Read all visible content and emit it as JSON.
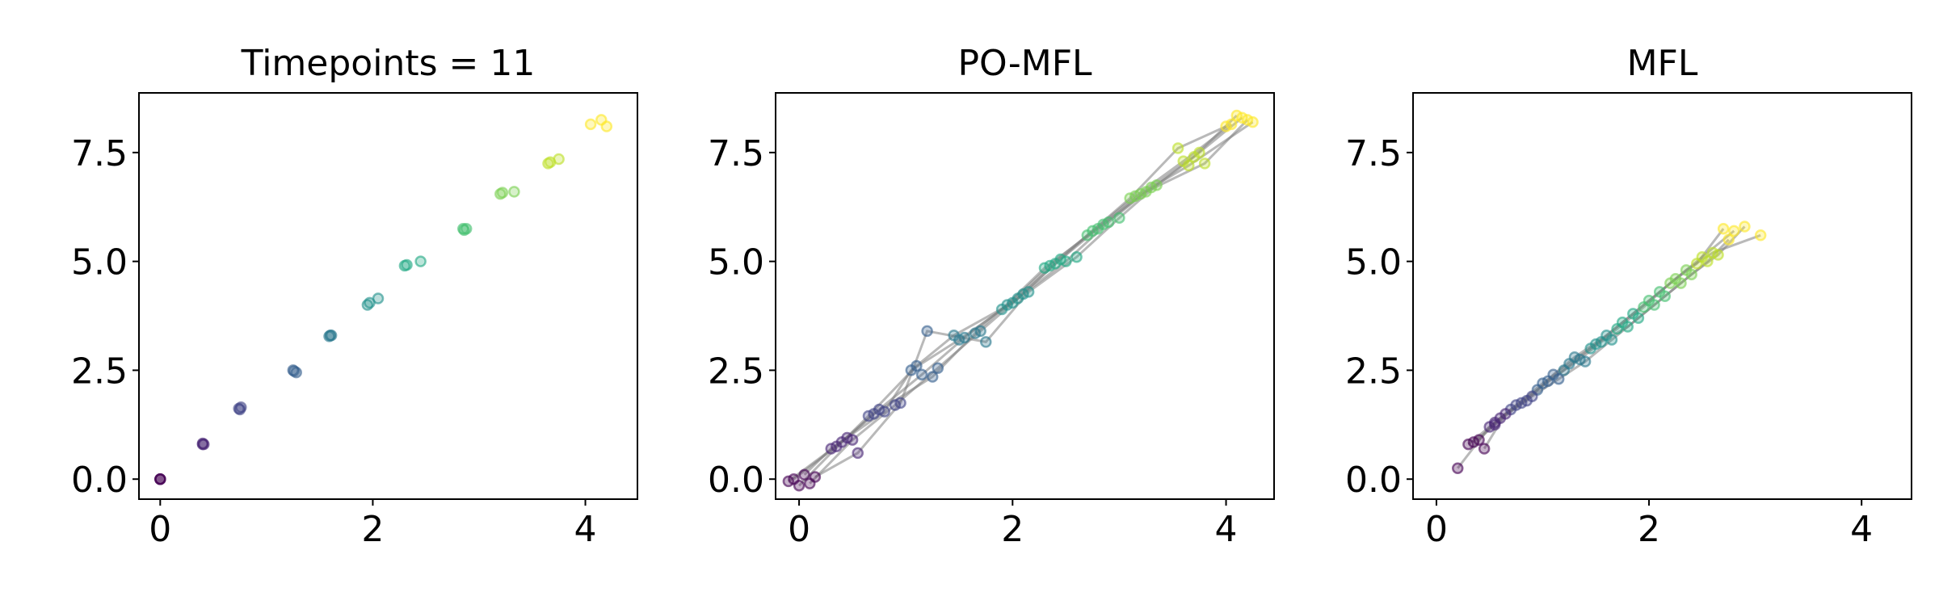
{
  "chart_data": [
    {
      "type": "scatter",
      "title": "Timepoints = 11",
      "xlim": [
        -0.2,
        4.49
      ],
      "ylim": [
        -0.46,
        8.87
      ],
      "xticks": [
        0,
        2,
        4
      ],
      "yticks": [
        {
          "value": 0,
          "label": "0.0"
        },
        2.5,
        {
          "value": 5,
          "label": "5.0"
        },
        7.5
      ],
      "point_colors": [
        "#440154",
        "#482475",
        "#414487",
        "#355f8d",
        "#2a788e",
        "#21918c",
        "#22a884",
        "#44bf70",
        "#7ad151",
        "#bddf26",
        "#fde725"
      ],
      "show_lines": false,
      "line_color": "#808080",
      "trajectories": [
        {
          "x": [
            0,
            0.4,
            0.75,
            1.25,
            1.6,
            1.95,
            2.3,
            2.85,
            3.2,
            3.65,
            4.05
          ],
          "y": [
            0,
            0.8,
            1.6,
            2.5,
            3.3,
            4.0,
            4.9,
            5.75,
            6.55,
            7.25,
            8.15
          ]
        },
        {
          "x": [
            0,
            0.41,
            0.76,
            1.28,
            1.61,
            2.05,
            2.45,
            2.88,
            3.33,
            3.75,
            4.15
          ],
          "y": [
            0,
            0.8,
            1.65,
            2.45,
            3.3,
            4.15,
            5.0,
            5.75,
            6.6,
            7.35,
            8.25
          ]
        },
        {
          "x": [
            0,
            0.4,
            0.74,
            1.26,
            1.59,
            1.97,
            2.32,
            2.86,
            3.22,
            3.67,
            4.2
          ],
          "y": [
            0,
            0.82,
            1.62,
            2.48,
            3.28,
            4.05,
            4.92,
            5.72,
            6.58,
            7.28,
            8.1
          ]
        }
      ]
    },
    {
      "type": "scatter",
      "title": "PO-MFL",
      "xlim": [
        -0.22,
        4.45
      ],
      "ylim": [
        -0.46,
        8.87
      ],
      "xticks": [
        0,
        2,
        4
      ],
      "yticks": [
        {
          "value": 0,
          "label": "0.0"
        },
        2.5,
        {
          "value": 5,
          "label": "5.0"
        },
        7.5
      ],
      "point_colors": [
        "#440154",
        "#482475",
        "#414487",
        "#355f8d",
        "#2a788e",
        "#21918c",
        "#22a884",
        "#44bf70",
        "#7ad151",
        "#bddf26",
        "#fde725"
      ],
      "show_lines": true,
      "line_color": "#808080",
      "trajectories": [
        {
          "x": [
            -0.05,
            0.35,
            0.75,
            1.15,
            1.55,
            1.95,
            2.35,
            2.75,
            3.15,
            3.6,
            4.05
          ],
          "y": [
            0.0,
            0.75,
            1.6,
            2.4,
            3.25,
            4.0,
            4.9,
            5.7,
            6.5,
            7.3,
            8.15
          ]
        },
        {
          "x": [
            0.1,
            0.5,
            0.9,
            1.3,
            1.7,
            2.1,
            2.5,
            2.9,
            3.3,
            3.75,
            4.15
          ],
          "y": [
            -0.1,
            0.9,
            1.7,
            2.55,
            3.4,
            4.25,
            5.0,
            5.9,
            6.7,
            7.5,
            8.3
          ]
        },
        {
          "x": [
            0.05,
            0.3,
            0.8,
            1.05,
            1.5,
            2.05,
            2.45,
            2.7,
            3.1,
            3.55,
            4.0
          ],
          "y": [
            0.1,
            0.7,
            1.55,
            2.5,
            3.2,
            4.15,
            5.05,
            5.6,
            6.45,
            7.6,
            8.1
          ]
        },
        {
          "x": [
            -0.1,
            0.45,
            0.7,
            1.25,
            1.65,
            1.9,
            2.3,
            2.85,
            3.25,
            3.8,
            4.2
          ],
          "y": [
            -0.05,
            0.95,
            1.5,
            2.35,
            3.35,
            3.9,
            4.85,
            5.85,
            6.6,
            7.25,
            8.25
          ]
        },
        {
          "x": [
            0.15,
            0.55,
            0.95,
            1.2,
            1.75,
            2.15,
            2.6,
            3.0,
            3.35,
            3.7,
            4.1
          ],
          "y": [
            0.05,
            0.6,
            1.75,
            3.4,
            3.15,
            4.3,
            5.1,
            6.0,
            6.75,
            7.4,
            8.35
          ]
        },
        {
          "x": [
            0.0,
            0.4,
            0.65,
            1.1,
            1.45,
            2.0,
            2.4,
            2.8,
            3.2,
            3.65,
            4.25
          ],
          "y": [
            -0.15,
            0.85,
            1.45,
            2.6,
            3.3,
            4.05,
            4.95,
            5.75,
            6.55,
            7.2,
            8.2
          ]
        }
      ]
    },
    {
      "type": "scatter",
      "title": "MFL",
      "xlim": [
        -0.22,
        4.47
      ],
      "ylim": [
        -0.46,
        8.87
      ],
      "xticks": [
        0,
        2,
        4
      ],
      "yticks": [
        {
          "value": 0,
          "label": "0.0"
        },
        2.5,
        {
          "value": 5,
          "label": "5.0"
        },
        7.5
      ],
      "point_colors": [
        "#440154",
        "#482475",
        "#414487",
        "#355f8d",
        "#2a788e",
        "#21918c",
        "#22a884",
        "#44bf70",
        "#7ad151",
        "#bddf26",
        "#fde725"
      ],
      "show_lines": true,
      "line_color": "#808080",
      "trajectories": [
        {
          "x": [
            0.3,
            0.55,
            0.75,
            1.0,
            1.25,
            1.5,
            1.75,
            2.0,
            2.25,
            2.5,
            2.8
          ],
          "y": [
            0.8,
            1.3,
            1.7,
            2.2,
            2.65,
            3.1,
            3.6,
            4.1,
            4.6,
            5.1,
            5.7
          ]
        },
        {
          "x": [
            0.4,
            0.6,
            0.85,
            1.1,
            1.3,
            1.6,
            1.85,
            2.1,
            2.35,
            2.6,
            3.05
          ],
          "y": [
            0.9,
            1.4,
            1.8,
            2.4,
            2.8,
            3.3,
            3.8,
            4.3,
            4.8,
            5.2,
            5.6
          ]
        },
        {
          "x": [
            0.2,
            0.5,
            0.7,
            0.95,
            1.2,
            1.45,
            1.7,
            1.95,
            2.2,
            2.45,
            2.7
          ],
          "y": [
            0.25,
            1.2,
            1.6,
            2.05,
            2.5,
            3.0,
            3.45,
            3.95,
            4.5,
            4.95,
            5.75
          ]
        },
        {
          "x": [
            0.45,
            0.65,
            0.9,
            1.15,
            1.4,
            1.65,
            1.9,
            2.15,
            2.4,
            2.65,
            2.9
          ],
          "y": [
            0.7,
            1.5,
            1.9,
            2.3,
            2.7,
            3.2,
            3.7,
            4.2,
            4.7,
            5.15,
            5.8
          ]
        },
        {
          "x": [
            0.35,
            0.55,
            0.8,
            1.05,
            1.35,
            1.55,
            1.8,
            2.05,
            2.3,
            2.55,
            2.75
          ],
          "y": [
            0.85,
            1.25,
            1.75,
            2.25,
            2.75,
            3.15,
            3.5,
            4.0,
            4.5,
            5.0,
            5.5
          ]
        }
      ]
    }
  ]
}
